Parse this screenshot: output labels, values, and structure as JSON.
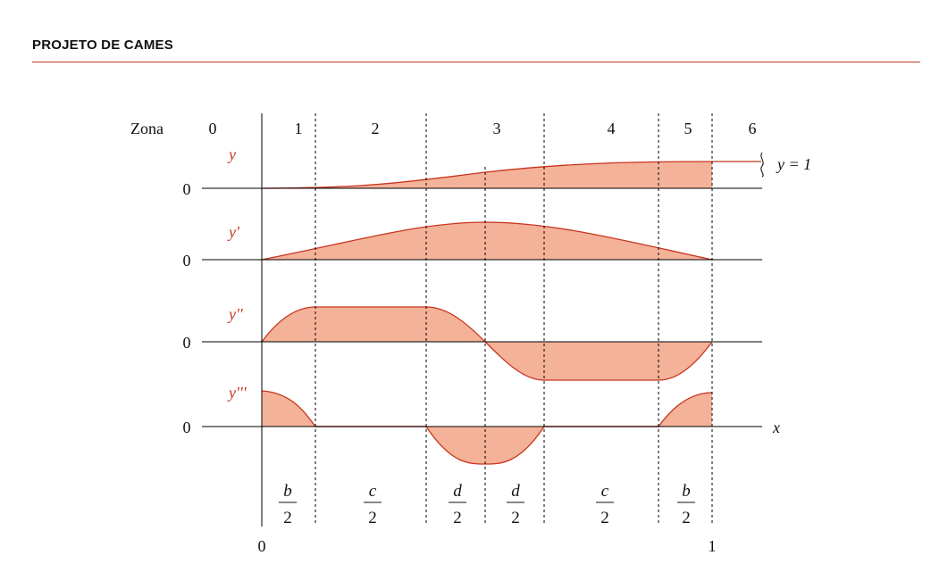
{
  "header": {
    "title": "PROJETO DE CAMES",
    "rule_color": "#c8351f"
  },
  "diagram": {
    "zone_label": "Zona",
    "zones": [
      "0",
      "1",
      "2",
      "3",
      "4",
      "5",
      "6"
    ],
    "rows": [
      {
        "label": "y",
        "zero": "0"
      },
      {
        "label": "y'",
        "zero": "0"
      },
      {
        "label": "y''",
        "zero": "0"
      },
      {
        "label": "y'''",
        "zero": "0"
      }
    ],
    "y_equals_one": "y = 1",
    "x_axis_label": "x",
    "fractions": [
      {
        "num": "b",
        "den": "2"
      },
      {
        "num": "c",
        "den": "2"
      },
      {
        "num": "d",
        "den": "2"
      },
      {
        "num": "d",
        "den": "2"
      },
      {
        "num": "c",
        "den": "2"
      },
      {
        "num": "b",
        "den": "2"
      }
    ],
    "bottom_ticks": [
      "0",
      "1"
    ],
    "colors": {
      "fill": "#f4b298",
      "curve": "#c8351f",
      "label": "#c8351f",
      "axis": "#000000",
      "text": "#111111"
    }
  }
}
